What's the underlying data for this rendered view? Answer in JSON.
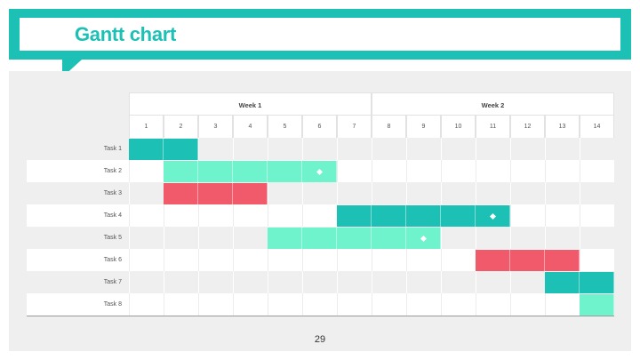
{
  "slide": {
    "title": "Gantt chart",
    "page_number": "29"
  },
  "colors": {
    "accent": "#1cc0b4",
    "light_green": "#6ef3cc",
    "red": "#f05a6a",
    "grey_row": "#efefef",
    "white_row": "#ffffff"
  },
  "chart_data": {
    "type": "gantt",
    "weeks": [
      {
        "label": "Week 1",
        "start_day": 1,
        "end_day": 7
      },
      {
        "label": "Week 2",
        "start_day": 8,
        "end_day": 14
      }
    ],
    "days": [
      "1",
      "2",
      "3",
      "4",
      "5",
      "6",
      "7",
      "8",
      "9",
      "10",
      "11",
      "12",
      "13",
      "14"
    ],
    "tasks": [
      {
        "name": "Task 1",
        "start": 1,
        "end": 2,
        "color": "#1cc0b4",
        "milestone": null
      },
      {
        "name": "Task 2",
        "start": 2,
        "end": 6,
        "color": "#6ef3cc",
        "milestone": 6
      },
      {
        "name": "Task 3",
        "start": 2,
        "end": 4,
        "color": "#f05a6a",
        "milestone": null
      },
      {
        "name": "Task 4",
        "start": 7,
        "end": 11,
        "color": "#1cc0b4",
        "milestone": 11
      },
      {
        "name": "Task 5",
        "start": 5,
        "end": 9,
        "color": "#6ef3cc",
        "milestone": 9
      },
      {
        "name": "Task 6",
        "start": 11,
        "end": 13,
        "color": "#f05a6a",
        "milestone": null
      },
      {
        "name": "Task 7",
        "start": 13,
        "end": 14,
        "color": "#1cc0b4",
        "milestone": null
      },
      {
        "name": "Task 8",
        "start": 14,
        "end": 14,
        "color": "#6ef3cc",
        "milestone": null
      }
    ]
  }
}
